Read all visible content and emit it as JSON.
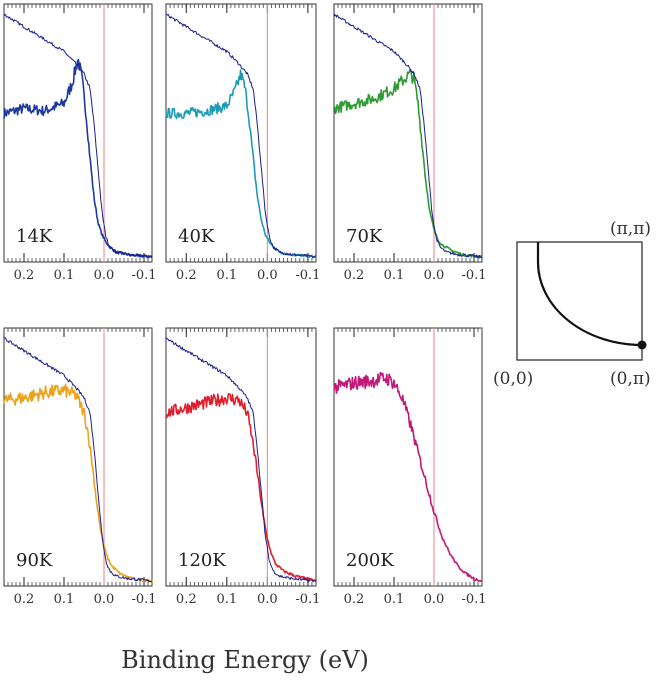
{
  "figure": {
    "xlabel": "Binding Energy (eV)",
    "reference_color": "#1a1f8c",
    "fermi_line_color": "#f08080"
  },
  "chart_data": [
    {
      "type": "line",
      "temperature": "14K",
      "color": "#1c3a9e",
      "xlim": [
        0.25,
        -0.12
      ],
      "xticks": [
        0.2,
        0.1,
        0.0,
        -0.1
      ],
      "tick_labels": [
        "0.2",
        "0.1",
        "0.0",
        "-0.1"
      ],
      "series": [
        {
          "name": "14K spectrum",
          "x": [
            0.25,
            0.2,
            0.15,
            0.1,
            0.08,
            0.065,
            0.055,
            0.045,
            0.035,
            0.025,
            0.015,
            0.005,
            -0.005,
            -0.015,
            -0.03,
            -0.06,
            -0.12
          ],
          "y": [
            0.6,
            0.62,
            0.61,
            0.64,
            0.72,
            0.82,
            0.74,
            0.6,
            0.42,
            0.26,
            0.16,
            0.11,
            0.08,
            0.06,
            0.04,
            0.03,
            0.02
          ]
        },
        {
          "name": "reference",
          "x": [
            0.25,
            0.2,
            0.15,
            0.1,
            0.07,
            0.05,
            0.035,
            0.025,
            0.015,
            0.005,
            -0.005,
            -0.015,
            -0.03,
            -0.06,
            -0.12
          ],
          "y": [
            1.0,
            0.95,
            0.9,
            0.85,
            0.8,
            0.76,
            0.7,
            0.56,
            0.38,
            0.2,
            0.1,
            0.06,
            0.04,
            0.03,
            0.02
          ]
        }
      ]
    },
    {
      "type": "line",
      "temperature": "40K",
      "color": "#1e9ab6",
      "xlim": [
        0.25,
        -0.12
      ],
      "xticks": [
        0.2,
        0.1,
        0.0,
        -0.1
      ],
      "tick_labels": [
        "0.2",
        "0.1",
        "0.0",
        "-0.1"
      ],
      "series": [
        {
          "name": "40K spectrum",
          "x": [
            0.25,
            0.2,
            0.15,
            0.1,
            0.08,
            0.065,
            0.055,
            0.045,
            0.035,
            0.025,
            0.015,
            0.005,
            -0.005,
            -0.015,
            -0.03,
            -0.06,
            -0.12
          ],
          "y": [
            0.6,
            0.6,
            0.61,
            0.63,
            0.69,
            0.76,
            0.7,
            0.58,
            0.42,
            0.27,
            0.17,
            0.11,
            0.08,
            0.06,
            0.04,
            0.03,
            0.02
          ]
        },
        {
          "name": "reference",
          "x": [
            0.25,
            0.2,
            0.15,
            0.1,
            0.07,
            0.05,
            0.035,
            0.025,
            0.015,
            0.005,
            -0.005,
            -0.015,
            -0.03,
            -0.06,
            -0.12
          ],
          "y": [
            1.0,
            0.95,
            0.9,
            0.85,
            0.8,
            0.76,
            0.7,
            0.56,
            0.38,
            0.2,
            0.1,
            0.06,
            0.04,
            0.03,
            0.02
          ]
        }
      ]
    },
    {
      "type": "line",
      "temperature": "70K",
      "color": "#2e9a32",
      "xlim": [
        0.25,
        -0.12
      ],
      "xticks": [
        0.2,
        0.1,
        0.0,
        -0.1
      ],
      "tick_labels": [
        "0.2",
        "0.1",
        "0.0",
        "-0.1"
      ],
      "series": [
        {
          "name": "70K spectrum",
          "x": [
            0.25,
            0.2,
            0.15,
            0.1,
            0.08,
            0.06,
            0.05,
            0.04,
            0.03,
            0.02,
            0.01,
            0.0,
            -0.01,
            -0.02,
            -0.04,
            -0.07,
            -0.12
          ],
          "y": [
            0.62,
            0.64,
            0.66,
            0.7,
            0.73,
            0.76,
            0.74,
            0.64,
            0.48,
            0.32,
            0.2,
            0.13,
            0.09,
            0.07,
            0.05,
            0.03,
            0.02
          ]
        },
        {
          "name": "reference",
          "x": [
            0.25,
            0.2,
            0.15,
            0.1,
            0.07,
            0.05,
            0.035,
            0.025,
            0.015,
            0.005,
            -0.005,
            -0.015,
            -0.03,
            -0.06,
            -0.12
          ],
          "y": [
            1.0,
            0.95,
            0.9,
            0.85,
            0.8,
            0.76,
            0.7,
            0.56,
            0.38,
            0.2,
            0.1,
            0.06,
            0.04,
            0.03,
            0.02
          ]
        }
      ]
    },
    {
      "type": "line",
      "temperature": "90K",
      "color": "#eda21c",
      "xlim": [
        0.25,
        -0.12
      ],
      "xticks": [
        0.2,
        0.1,
        0.0,
        -0.1
      ],
      "tick_labels": [
        "0.2",
        "0.1",
        "0.0",
        "-0.1"
      ],
      "series": [
        {
          "name": "90K spectrum",
          "x": [
            0.25,
            0.2,
            0.15,
            0.1,
            0.07,
            0.05,
            0.04,
            0.03,
            0.02,
            0.01,
            0.0,
            -0.01,
            -0.02,
            -0.04,
            -0.07,
            -0.12
          ],
          "y": [
            0.75,
            0.76,
            0.78,
            0.79,
            0.77,
            0.7,
            0.62,
            0.5,
            0.36,
            0.24,
            0.16,
            0.11,
            0.08,
            0.05,
            0.03,
            0.02
          ]
        },
        {
          "name": "reference",
          "x": [
            0.25,
            0.2,
            0.15,
            0.1,
            0.07,
            0.05,
            0.035,
            0.025,
            0.015,
            0.005,
            -0.005,
            -0.015,
            -0.03,
            -0.06,
            -0.12
          ],
          "y": [
            1.0,
            0.95,
            0.9,
            0.85,
            0.8,
            0.76,
            0.7,
            0.56,
            0.38,
            0.2,
            0.1,
            0.06,
            0.04,
            0.03,
            0.02
          ]
        }
      ]
    },
    {
      "type": "line",
      "temperature": "120K",
      "color": "#e01e2e",
      "xlim": [
        0.25,
        -0.12
      ],
      "xticks": [
        0.2,
        0.1,
        0.0,
        -0.1
      ],
      "tick_labels": [
        "0.2",
        "0.1",
        "0.0",
        "-0.1"
      ],
      "series": [
        {
          "name": "120K spectrum",
          "x": [
            0.25,
            0.2,
            0.15,
            0.1,
            0.07,
            0.05,
            0.04,
            0.03,
            0.02,
            0.01,
            0.0,
            -0.01,
            -0.02,
            -0.04,
            -0.07,
            -0.12
          ],
          "y": [
            0.7,
            0.72,
            0.74,
            0.76,
            0.75,
            0.7,
            0.62,
            0.52,
            0.4,
            0.28,
            0.19,
            0.13,
            0.09,
            0.06,
            0.04,
            0.02
          ]
        },
        {
          "name": "reference",
          "x": [
            0.25,
            0.2,
            0.15,
            0.1,
            0.07,
            0.05,
            0.035,
            0.025,
            0.015,
            0.005,
            -0.005,
            -0.015,
            -0.03,
            -0.06,
            -0.12
          ],
          "y": [
            1.0,
            0.95,
            0.9,
            0.85,
            0.8,
            0.76,
            0.7,
            0.56,
            0.38,
            0.2,
            0.1,
            0.06,
            0.04,
            0.03,
            0.02
          ]
        }
      ]
    },
    {
      "type": "line",
      "temperature": "200K",
      "color": "#c2187a",
      "xlim": [
        0.25,
        -0.12
      ],
      "xticks": [
        0.2,
        0.1,
        0.0,
        -0.1
      ],
      "tick_labels": [
        "0.2",
        "0.1",
        "0.0",
        "-0.1"
      ],
      "series": [
        {
          "name": "200K spectrum",
          "x": [
            0.25,
            0.2,
            0.15,
            0.12,
            0.1,
            0.08,
            0.06,
            0.04,
            0.02,
            0.0,
            -0.02,
            -0.04,
            -0.06,
            -0.08,
            -0.1,
            -0.12
          ],
          "y": [
            0.8,
            0.82,
            0.83,
            0.84,
            0.82,
            0.76,
            0.66,
            0.54,
            0.42,
            0.3,
            0.2,
            0.13,
            0.08,
            0.05,
            0.03,
            0.02
          ]
        }
      ]
    }
  ],
  "fermi_surface_inset": {
    "type": "diagram",
    "corner_labels": {
      "top_right": "(π,π)",
      "bottom_left": "(0,0)",
      "bottom_right": "(0,π)"
    },
    "marker": "(0,π)"
  }
}
